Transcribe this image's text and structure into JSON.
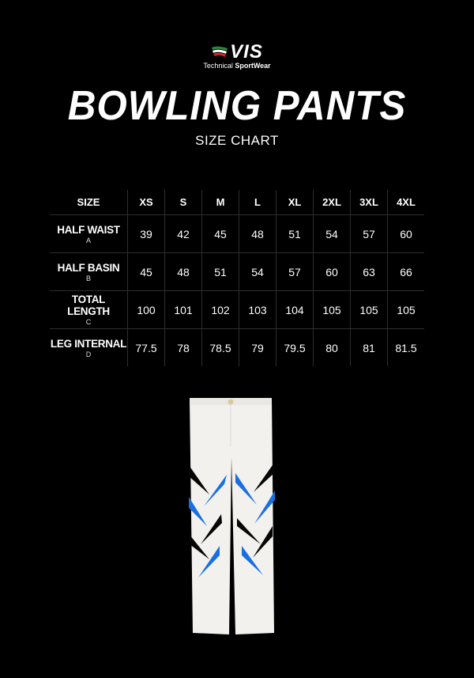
{
  "brand": {
    "logo_text": "VIS",
    "tagline_regular": "Technical ",
    "tagline_bold": "SportWear"
  },
  "title": "BOWLING PANTS",
  "subtitle": "SIZE CHART",
  "table": {
    "header": [
      "SIZE",
      "XS",
      "S",
      "M",
      "L",
      "XL",
      "2XL",
      "3XL",
      "4XL"
    ],
    "rows": [
      {
        "label": "HALF WAIST",
        "code": "A",
        "values": [
          "39",
          "42",
          "45",
          "48",
          "51",
          "54",
          "57",
          "60"
        ]
      },
      {
        "label": "HALF BASIN",
        "code": "B",
        "values": [
          "45",
          "48",
          "51",
          "54",
          "57",
          "60",
          "63",
          "66"
        ]
      },
      {
        "label": "TOTAL LENGTH",
        "code": "C",
        "values": [
          "100",
          "101",
          "102",
          "103",
          "104",
          "105",
          "105",
          "105"
        ]
      },
      {
        "label": "LEG INTERNAL",
        "code": "D",
        "values": [
          "77.5",
          "78",
          "78.5",
          "79",
          "79.5",
          "80",
          "81",
          "81.5"
        ]
      }
    ]
  },
  "colors": {
    "background": "#000000",
    "pants": "#f2f1ee",
    "stripe_blue": "#1a6fe0",
    "stripe_black": "#050505"
  }
}
